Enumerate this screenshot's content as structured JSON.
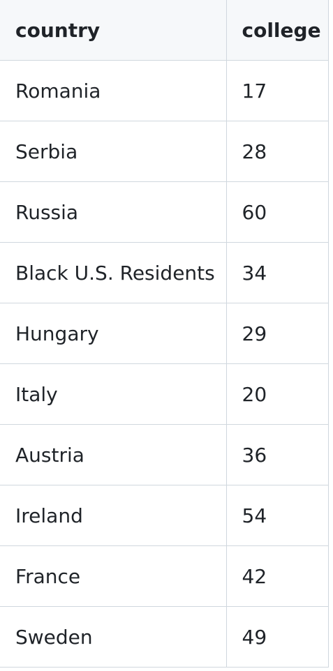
{
  "table": {
    "headers": [
      "country",
      "college"
    ],
    "rows": [
      [
        "Romania",
        "17"
      ],
      [
        "Serbia",
        "28"
      ],
      [
        "Russia",
        "60"
      ],
      [
        "Black U.S. Residents",
        "34"
      ],
      [
        "Hungary",
        "29"
      ],
      [
        "Italy",
        "20"
      ],
      [
        "Austria",
        "36"
      ],
      [
        "Ireland",
        "54"
      ],
      [
        "France",
        "42"
      ],
      [
        "Sweden",
        "49"
      ]
    ]
  }
}
